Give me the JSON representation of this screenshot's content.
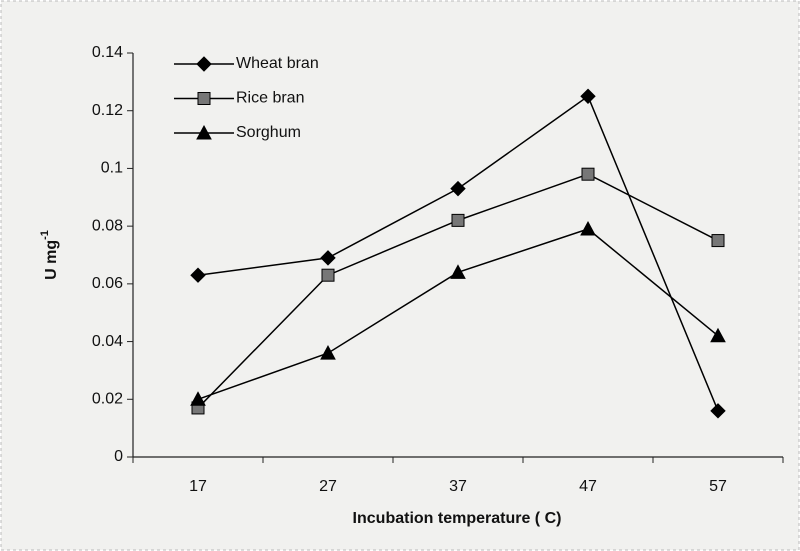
{
  "chart_data": {
    "type": "line",
    "x_label": "Incubation temperature ( C)",
    "y_label": {
      "text": "U mg",
      "superscript": "-1"
    },
    "categories": [
      "17",
      "27",
      "37",
      "47",
      "57"
    ],
    "series": [
      {
        "name": "Wheat bran",
        "color": "#000000",
        "marker": "diamond",
        "values": [
          0.063,
          0.069,
          0.093,
          0.125,
          0.016
        ]
      },
      {
        "name": "Rice bran",
        "color": "#000000",
        "marker": "square",
        "values": [
          0.017,
          0.063,
          0.082,
          0.098,
          0.075
        ]
      },
      {
        "name": "Sorghum",
        "color": "#000000",
        "marker": "triangle",
        "values": [
          0.02,
          0.036,
          0.064,
          0.079,
          0.042
        ]
      }
    ],
    "ylim": [
      0,
      0.14
    ],
    "yticks": [
      0,
      0.02,
      0.04,
      0.06,
      0.08,
      0.1,
      0.12,
      0.14
    ],
    "legend": "upper-left"
  }
}
